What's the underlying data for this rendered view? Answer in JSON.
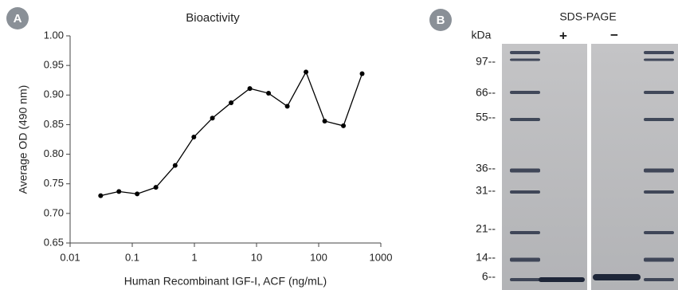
{
  "chart_data": {
    "type": "line",
    "title": "Bioactivity",
    "x_label": "Human Recombinant IGF-I, ACF (ng/mL)",
    "y_label": "Average OD (490 nm)",
    "x": [
      0.031,
      0.061,
      0.12,
      0.24,
      0.49,
      0.98,
      1.95,
      3.9,
      7.8,
      15.6,
      31.25,
      62.5,
      125,
      250,
      500
    ],
    "values": [
      0.73,
      0.737,
      0.733,
      0.744,
      0.781,
      0.829,
      0.861,
      0.887,
      0.911,
      0.903,
      0.881,
      0.939,
      0.856,
      0.848,
      0.936
    ],
    "color": "#000000",
    "log_x": true,
    "grid": false,
    "xlim": [
      0.01,
      1000
    ],
    "xticks": [
      0.01,
      0.1,
      1,
      10,
      100,
      1000
    ],
    "ylim": [
      0.65,
      1.0
    ],
    "yticks": [
      {
        "value": 0.65,
        "label": "0.65"
      },
      {
        "value": 0.7,
        "label": "0.70"
      },
      {
        "value": 0.75,
        "label": "0.75"
      },
      {
        "value": 0.8,
        "label": "0.80"
      },
      {
        "value": 0.85,
        "label": "0.85"
      },
      {
        "value": 0.9,
        "label": "0.90"
      },
      {
        "value": 0.95,
        "label": "0.95"
      },
      {
        "value": 1.0,
        "label": "1.00"
      }
    ]
  },
  "panel_labels": [
    "A",
    "B"
  ],
  "gel": {
    "title": "SDS-PAGE",
    "unit_label": "kDa",
    "lanes": [
      "+",
      "−"
    ],
    "markers": [
      "97--",
      "66--",
      "55--",
      "36--",
      "31--",
      "21--",
      "14--",
      "6--"
    ]
  }
}
